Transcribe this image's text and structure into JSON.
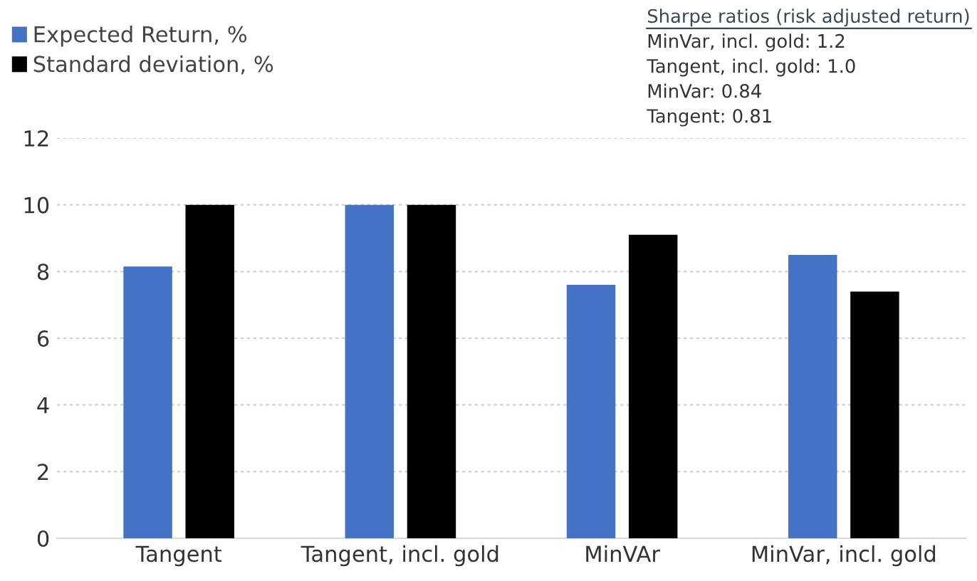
{
  "chart_data": {
    "type": "bar",
    "categories": [
      "Tangent",
      "Tangent, incl. gold",
      "MinVAr",
      "MinVar, incl. gold"
    ],
    "series": [
      {
        "name": "Expected Return, %",
        "color": "#4472c4",
        "values": [
          8.15,
          10.0,
          7.6,
          8.5
        ]
      },
      {
        "name": "Standard deviation, %",
        "color": "#000000",
        "values": [
          10.0,
          10.0,
          9.1,
          7.4
        ]
      }
    ],
    "ylim": [
      0,
      12
    ],
    "yticks": [
      0,
      2,
      4,
      6,
      8,
      10,
      12
    ],
    "grid": "y",
    "legend": "top left",
    "annotations": [
      "Sharpe ratios (risk adjusted return)",
      "MinVar, incl. gold: 1.2",
      "Tangent, incl. gold: 1.0",
      "MinVar: 0.84",
      "Tangent: 0.81"
    ]
  }
}
